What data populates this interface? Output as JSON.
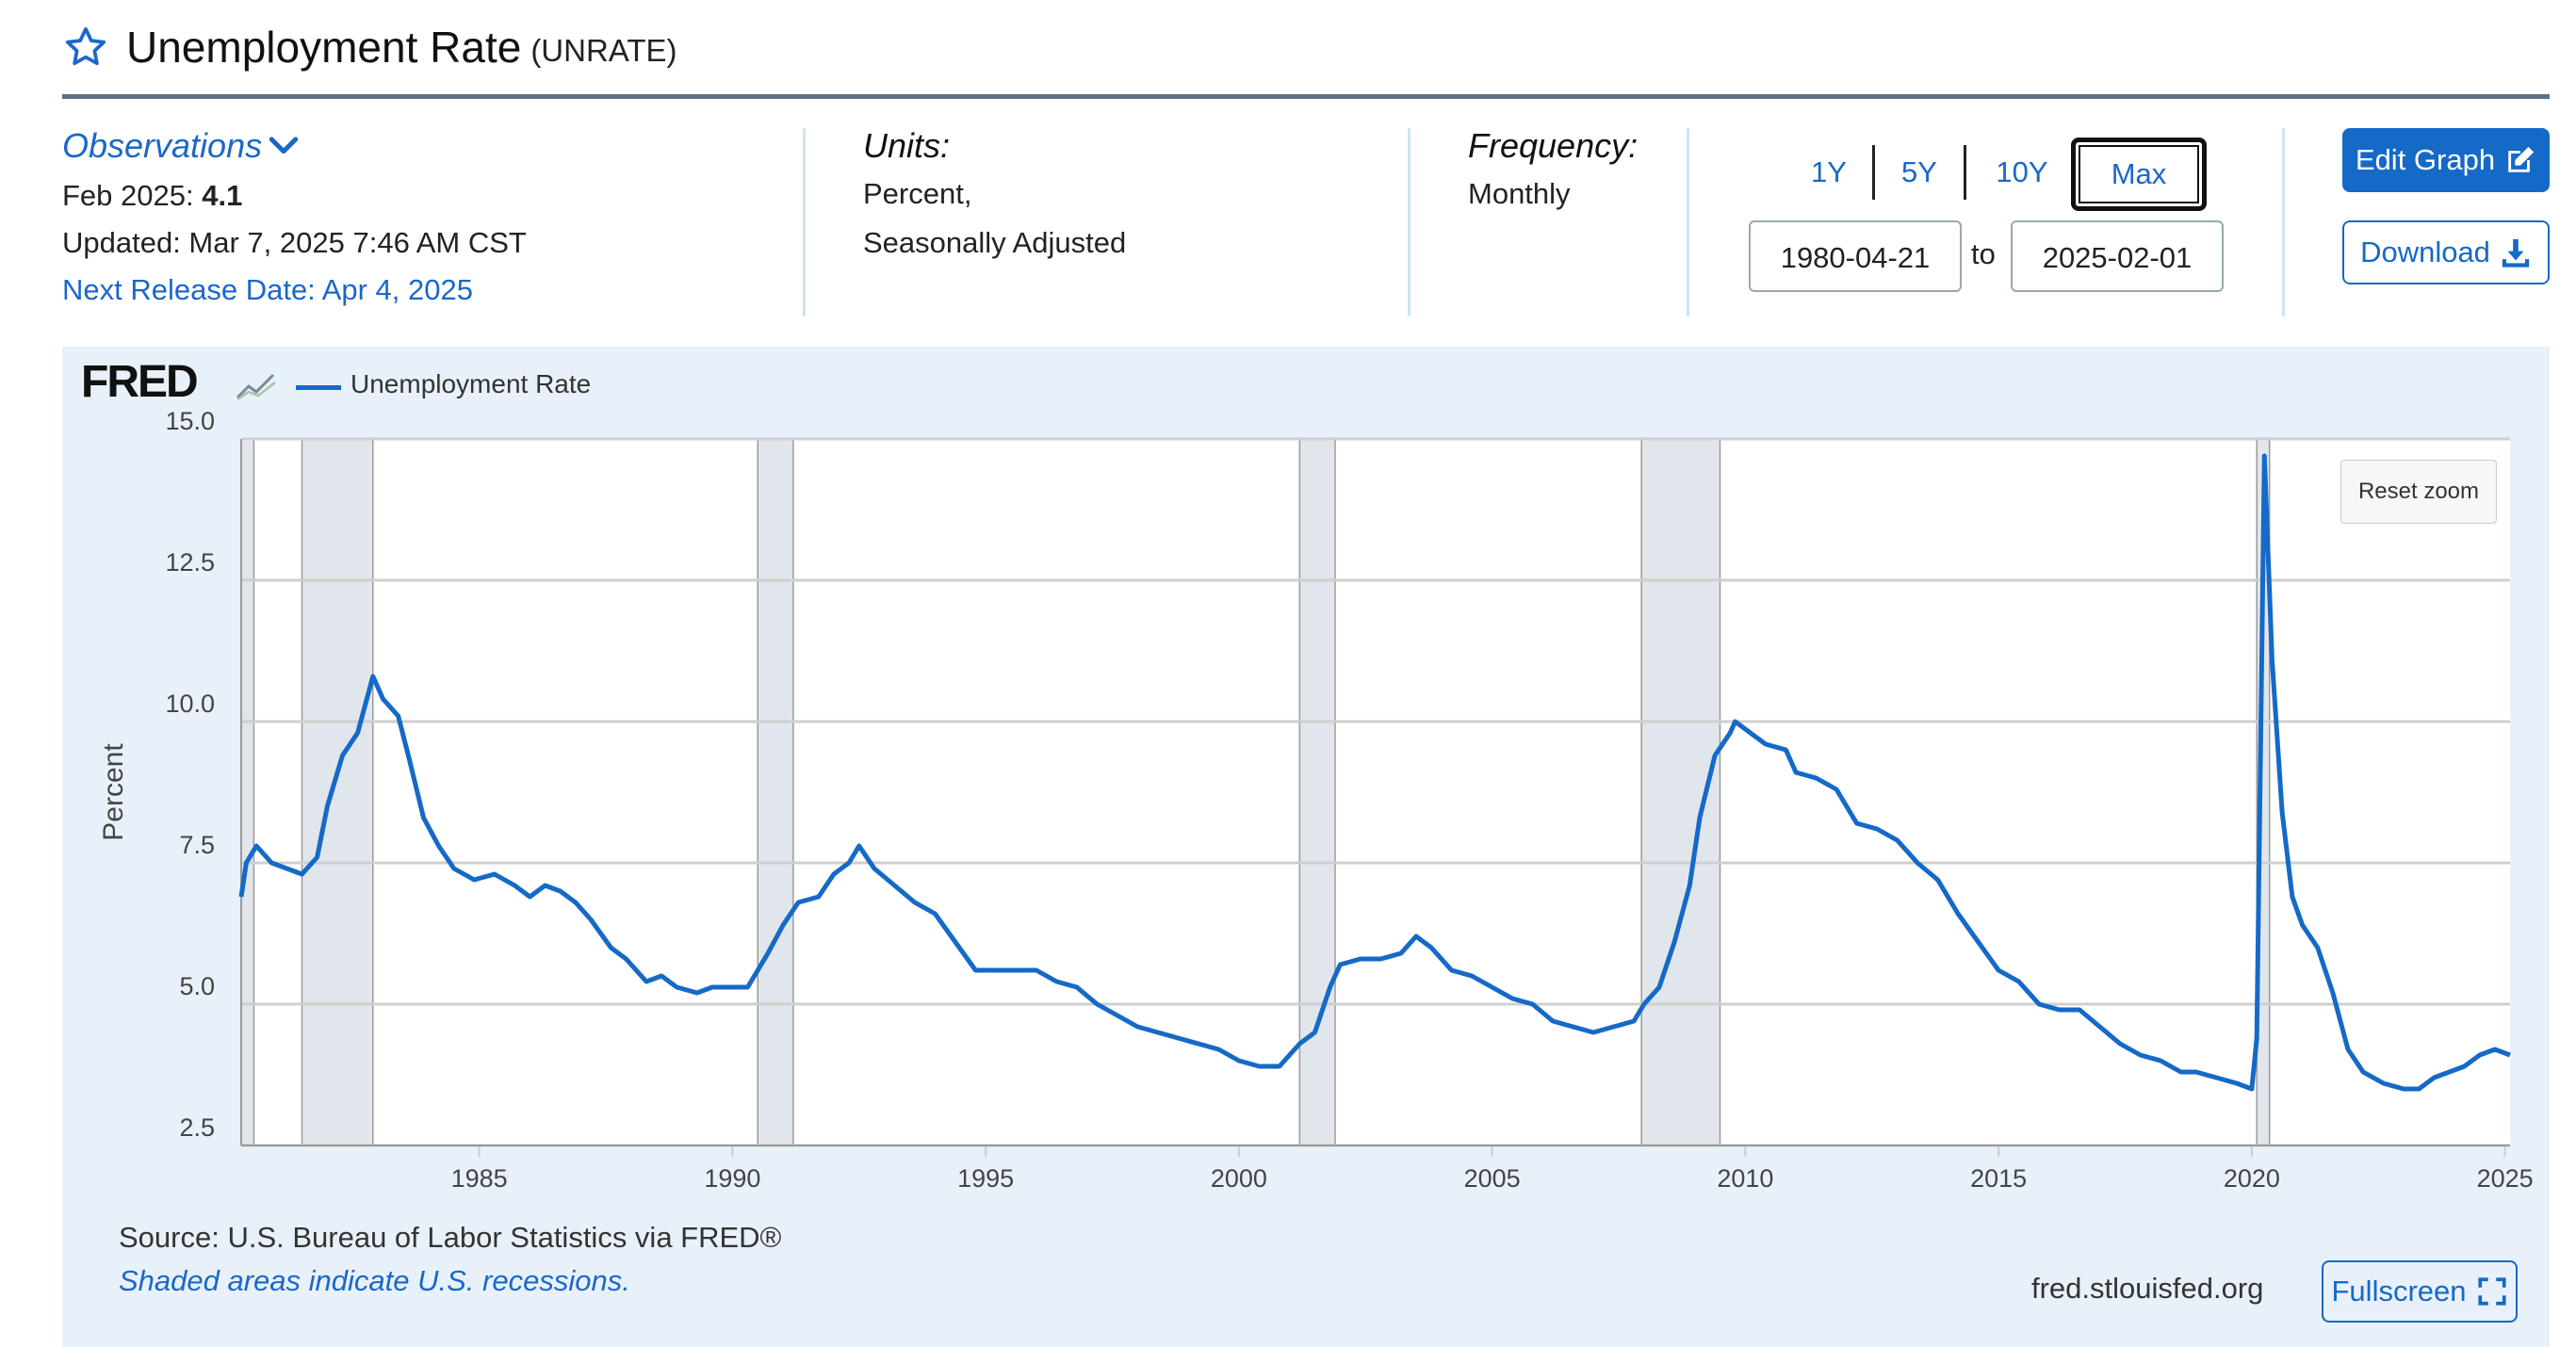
{
  "header": {
    "title": "Unemployment Rate",
    "series_id": "(UNRATE)"
  },
  "observations": {
    "label": "Observations",
    "latest_prefix": "Feb 2025: ",
    "latest_value": "4.1",
    "updated": "Updated: Mar 7, 2025 7:46 AM CST",
    "next_release": "Next Release Date: Apr 4, 2025"
  },
  "units": {
    "label": "Units:",
    "line1": "Percent,",
    "line2": "Seasonally Adjusted"
  },
  "frequency": {
    "label": "Frequency:",
    "value": "Monthly"
  },
  "range": {
    "buttons": [
      "1Y",
      "5Y",
      "10Y",
      "Max"
    ],
    "selected": "Max",
    "start_date": "1980-04-21",
    "to_label": "to",
    "end_date": "2025-02-01"
  },
  "actions": {
    "edit_graph": "Edit Graph",
    "download": "Download",
    "fullscreen": "Fullscreen",
    "reset_zoom": "Reset zoom"
  },
  "chart_panel": {
    "logo_text": "FRED",
    "source": "Source: U.S. Bureau of Labor Statistics via FRED®",
    "shade_note": "Shaded areas indicate U.S. recessions.",
    "site": "fred.stlouisfed.org"
  },
  "colors": {
    "accent": "#1569c7",
    "series": "#1569c7",
    "recession_shade": "#e1e6ec",
    "panel_bg": "#e8f1fa"
  },
  "chart_data": {
    "type": "line",
    "ylabel": "Percent",
    "ylim": [
      2.5,
      15.0
    ],
    "yticks": [
      "2.5",
      "5.0",
      "7.5",
      "10.0",
      "12.5",
      "15.0"
    ],
    "xlim": [
      1980.3,
      2025.1
    ],
    "xticks": [
      "1985",
      "1990",
      "1995",
      "2000",
      "2005",
      "2010",
      "2015",
      "2020",
      "2025"
    ],
    "grid": true,
    "legend": "top-left",
    "series": [
      {
        "name": "Unemployment Rate",
        "points": [
          [
            1980.3,
            6.9
          ],
          [
            1980.4,
            7.5
          ],
          [
            1980.6,
            7.8
          ],
          [
            1980.9,
            7.5
          ],
          [
            1981.2,
            7.4
          ],
          [
            1981.5,
            7.3
          ],
          [
            1981.8,
            7.6
          ],
          [
            1982.0,
            8.5
          ],
          [
            1982.3,
            9.4
          ],
          [
            1982.6,
            9.8
          ],
          [
            1982.9,
            10.8
          ],
          [
            1983.1,
            10.4
          ],
          [
            1983.4,
            10.1
          ],
          [
            1983.6,
            9.4
          ],
          [
            1983.9,
            8.3
          ],
          [
            1984.2,
            7.8
          ],
          [
            1984.5,
            7.4
          ],
          [
            1984.9,
            7.2
          ],
          [
            1985.3,
            7.3
          ],
          [
            1985.7,
            7.1
          ],
          [
            1986.0,
            6.9
          ],
          [
            1986.3,
            7.1
          ],
          [
            1986.6,
            7.0
          ],
          [
            1986.9,
            6.8
          ],
          [
            1987.2,
            6.5
          ],
          [
            1987.6,
            6.0
          ],
          [
            1987.9,
            5.8
          ],
          [
            1988.3,
            5.4
          ],
          [
            1988.6,
            5.5
          ],
          [
            1988.9,
            5.3
          ],
          [
            1989.3,
            5.2
          ],
          [
            1989.6,
            5.3
          ],
          [
            1990.0,
            5.3
          ],
          [
            1990.3,
            5.3
          ],
          [
            1990.7,
            5.9
          ],
          [
            1991.0,
            6.4
          ],
          [
            1991.3,
            6.8
          ],
          [
            1991.7,
            6.9
          ],
          [
            1992.0,
            7.3
          ],
          [
            1992.3,
            7.5
          ],
          [
            1992.5,
            7.8
          ],
          [
            1992.8,
            7.4
          ],
          [
            1993.2,
            7.1
          ],
          [
            1993.6,
            6.8
          ],
          [
            1994.0,
            6.6
          ],
          [
            1994.4,
            6.1
          ],
          [
            1994.8,
            5.6
          ],
          [
            1995.2,
            5.6
          ],
          [
            1995.6,
            5.6
          ],
          [
            1996.0,
            5.6
          ],
          [
            1996.4,
            5.4
          ],
          [
            1996.8,
            5.3
          ],
          [
            1997.2,
            5.0
          ],
          [
            1997.6,
            4.8
          ],
          [
            1998.0,
            4.6
          ],
          [
            1998.4,
            4.5
          ],
          [
            1998.8,
            4.4
          ],
          [
            1999.2,
            4.3
          ],
          [
            1999.6,
            4.2
          ],
          [
            2000.0,
            4.0
          ],
          [
            2000.4,
            3.9
          ],
          [
            2000.8,
            3.9
          ],
          [
            2001.2,
            4.3
          ],
          [
            2001.5,
            4.5
          ],
          [
            2001.8,
            5.3
          ],
          [
            2002.0,
            5.7
          ],
          [
            2002.4,
            5.8
          ],
          [
            2002.8,
            5.8
          ],
          [
            2003.2,
            5.9
          ],
          [
            2003.5,
            6.2
          ],
          [
            2003.8,
            6.0
          ],
          [
            2004.2,
            5.6
          ],
          [
            2004.6,
            5.5
          ],
          [
            2005.0,
            5.3
          ],
          [
            2005.4,
            5.1
          ],
          [
            2005.8,
            5.0
          ],
          [
            2006.2,
            4.7
          ],
          [
            2006.6,
            4.6
          ],
          [
            2007.0,
            4.5
          ],
          [
            2007.4,
            4.6
          ],
          [
            2007.8,
            4.7
          ],
          [
            2008.0,
            5.0
          ],
          [
            2008.3,
            5.3
          ],
          [
            2008.6,
            6.1
          ],
          [
            2008.9,
            7.1
          ],
          [
            2009.1,
            8.3
          ],
          [
            2009.4,
            9.4
          ],
          [
            2009.7,
            9.8
          ],
          [
            2009.8,
            10.0
          ],
          [
            2010.1,
            9.8
          ],
          [
            2010.4,
            9.6
          ],
          [
            2010.8,
            9.5
          ],
          [
            2011.0,
            9.1
          ],
          [
            2011.4,
            9.0
          ],
          [
            2011.8,
            8.8
          ],
          [
            2012.2,
            8.2
          ],
          [
            2012.6,
            8.1
          ],
          [
            2013.0,
            7.9
          ],
          [
            2013.4,
            7.5
          ],
          [
            2013.8,
            7.2
          ],
          [
            2014.2,
            6.6
          ],
          [
            2014.6,
            6.1
          ],
          [
            2015.0,
            5.6
          ],
          [
            2015.4,
            5.4
          ],
          [
            2015.8,
            5.0
          ],
          [
            2016.2,
            4.9
          ],
          [
            2016.6,
            4.9
          ],
          [
            2017.0,
            4.6
          ],
          [
            2017.4,
            4.3
          ],
          [
            2017.8,
            4.1
          ],
          [
            2018.2,
            4.0
          ],
          [
            2018.6,
            3.8
          ],
          [
            2018.9,
            3.8
          ],
          [
            2019.3,
            3.7
          ],
          [
            2019.7,
            3.6
          ],
          [
            2020.0,
            3.5
          ],
          [
            2020.1,
            4.4
          ],
          [
            2020.25,
            14.7
          ],
          [
            2020.4,
            11.1
          ],
          [
            2020.6,
            8.4
          ],
          [
            2020.8,
            6.9
          ],
          [
            2021.0,
            6.4
          ],
          [
            2021.3,
            6.0
          ],
          [
            2021.6,
            5.2
          ],
          [
            2021.9,
            4.2
          ],
          [
            2022.2,
            3.8
          ],
          [
            2022.6,
            3.6
          ],
          [
            2023.0,
            3.5
          ],
          [
            2023.3,
            3.5
          ],
          [
            2023.6,
            3.7
          ],
          [
            2023.9,
            3.8
          ],
          [
            2024.2,
            3.9
          ],
          [
            2024.5,
            4.1
          ],
          [
            2024.8,
            4.2
          ],
          [
            2025.1,
            4.1
          ]
        ]
      }
    ],
    "recessions": [
      [
        1980.3,
        1980.55
      ],
      [
        1981.5,
        1982.9
      ],
      [
        1990.5,
        1991.2
      ],
      [
        2001.2,
        2001.9
      ],
      [
        2007.95,
        2009.5
      ],
      [
        2020.1,
        2020.35
      ]
    ]
  }
}
